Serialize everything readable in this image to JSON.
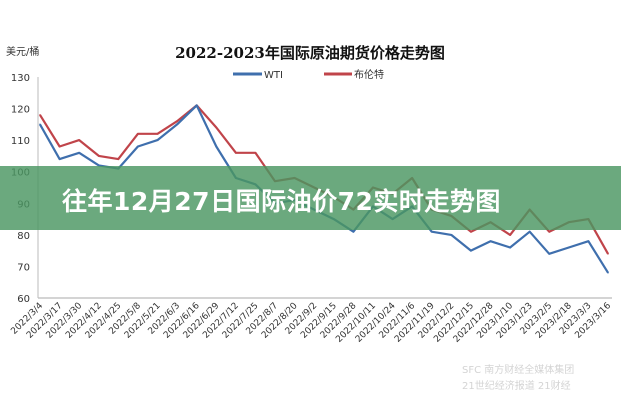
{
  "chart_data": {
    "type": "line",
    "title": "2022-2023年国际原油期货价格走势图",
    "ylabel": "美元/桶",
    "xlabel": "",
    "ylim": [
      60,
      130
    ],
    "yticks": [
      "60",
      "70",
      "80",
      "90",
      "100",
      "110",
      "120",
      "130"
    ],
    "grid": false,
    "legend": "top-center",
    "categories": [
      "2022/3/4",
      "2022/3/17",
      "2022/3/30",
      "2022/4/12",
      "2022/4/25",
      "2022/5/8",
      "2022/5/21",
      "2022/6/3",
      "2022/6/16",
      "2022/6/29",
      "2022/7/12",
      "2022/7/25",
      "2022/8/7",
      "2022/8/20",
      "2022/9/2",
      "2022/9/15",
      "2022/9/28",
      "2022/10/11",
      "2022/10/24",
      "2022/11/6",
      "2022/11/19",
      "2022/12/2",
      "2022/12/15",
      "2022/12/28",
      "2023/1/10",
      "2023/1/23",
      "2023/2/5",
      "2023/2/18",
      "2023/3/3",
      "2023/3/16"
    ],
    "series": [
      {
        "name": "WTI",
        "color": "#3f6fad",
        "values": [
          115,
          104,
          106,
          102,
          101,
          108,
          110,
          115,
          121,
          108,
          98,
          96,
          90,
          91,
          88,
          85,
          81,
          89,
          85,
          89,
          81,
          80,
          75,
          78,
          76,
          81,
          74,
          76,
          78,
          68
        ]
      },
      {
        "name": "布伦特",
        "color": "#c0444a",
        "values": [
          118,
          108,
          110,
          105,
          104,
          112,
          112,
          116,
          121,
          114,
          106,
          106,
          97,
          98,
          95,
          92,
          88,
          95,
          93,
          98,
          88,
          86,
          81,
          84,
          80,
          88,
          81,
          84,
          85,
          74
        ]
      }
    ]
  },
  "banner": {
    "text": "往年12月27日国际油价72实时走势图",
    "color": "#4a9662"
  },
  "watermark": {
    "line1": "SFC 南方财经全媒体集团",
    "line2": "21世纪经济报道 21财经"
  }
}
